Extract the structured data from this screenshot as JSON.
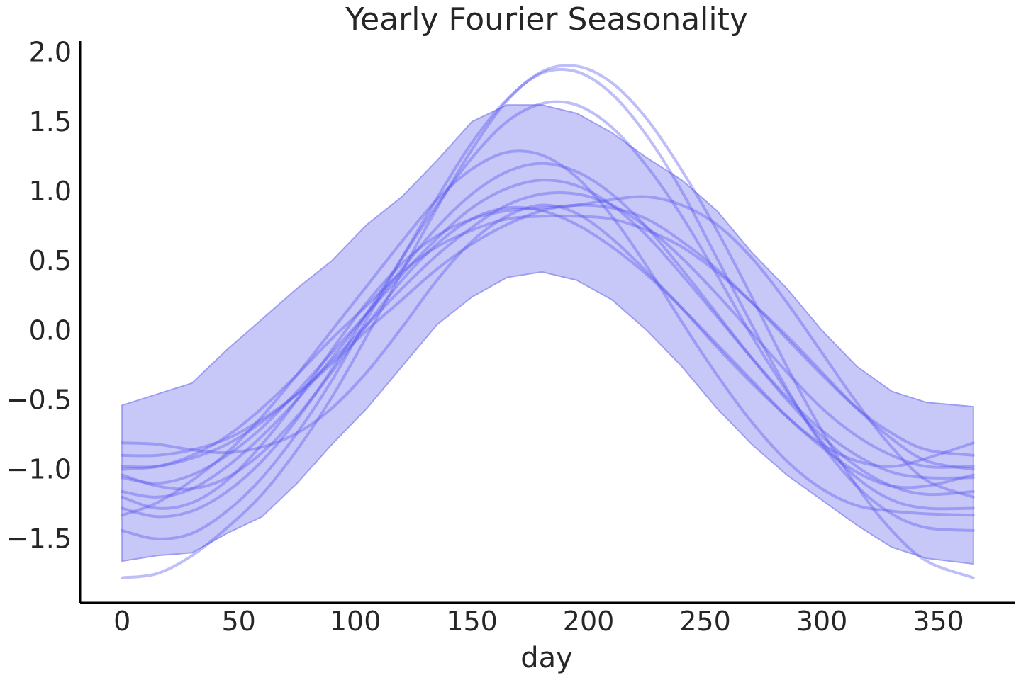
{
  "chart_data": {
    "type": "line",
    "title": "Yearly Fourier Seasonality",
    "xlabel": "day",
    "ylabel": "",
    "xlim": [
      -18,
      383
    ],
    "ylim": [
      -1.96,
      2.08
    ],
    "xticks": [
      0,
      50,
      100,
      150,
      200,
      250,
      300,
      350
    ],
    "xtick_labels": [
      "0",
      "50",
      "100",
      "150",
      "200",
      "250",
      "300",
      "350"
    ],
    "yticks": [
      -1.5,
      -1.0,
      -0.5,
      0.0,
      0.5,
      1.0,
      1.5,
      2.0
    ],
    "ytick_labels": [
      "−1.5",
      "−1.0",
      "−0.5",
      "0.0",
      "0.5",
      "1.0",
      "1.5",
      "2.0"
    ],
    "grid": false,
    "legend": "none",
    "colors": {
      "band": "#c8c8f8",
      "band_edge": "#9d9df2",
      "lines": "#5555ee",
      "axes": "#000000",
      "text": "#262626"
    },
    "band": {
      "name": "",
      "x": [
        0,
        15,
        30,
        45,
        60,
        75,
        90,
        105,
        120,
        135,
        150,
        165,
        180,
        195,
        210,
        225,
        240,
        255,
        270,
        285,
        300,
        315,
        330,
        345,
        365
      ],
      "upper": [
        -0.54,
        -0.46,
        -0.38,
        -0.14,
        0.08,
        0.3,
        0.5,
        0.76,
        0.96,
        1.22,
        1.5,
        1.62,
        1.62,
        1.56,
        1.42,
        1.24,
        1.08,
        0.86,
        0.56,
        0.3,
        0.0,
        -0.26,
        -0.44,
        -0.52,
        -0.55
      ],
      "lower": [
        -1.66,
        -1.62,
        -1.6,
        -1.46,
        -1.34,
        -1.1,
        -0.82,
        -0.56,
        -0.26,
        0.04,
        0.24,
        0.38,
        0.42,
        0.36,
        0.22,
        0.0,
        -0.26,
        -0.56,
        -0.82,
        -1.04,
        -1.22,
        -1.4,
        -1.56,
        -1.64,
        -1.68
      ]
    },
    "series": [
      {
        "values": [
          -1.78,
          -1.75,
          -1.62,
          -1.42,
          -1.18,
          -0.86,
          -0.48,
          -0.04,
          0.42,
          0.88,
          1.3,
          1.65,
          1.86,
          1.9,
          1.78,
          1.52,
          1.15,
          0.72,
          0.24,
          -0.26,
          -0.72,
          -1.12,
          -1.44,
          -1.66,
          -1.78
        ]
      },
      {
        "values": [
          -1.44,
          -1.5,
          -1.46,
          -1.3,
          -1.06,
          -0.74,
          -0.36,
          0.08,
          0.52,
          0.95,
          1.35,
          1.66,
          1.85,
          1.86,
          1.7,
          1.4,
          1.0,
          0.52,
          0.04,
          -0.42,
          -0.82,
          -1.12,
          -1.32,
          -1.42,
          -1.44
        ]
      },
      {
        "values": [
          -1.28,
          -1.34,
          -1.3,
          -1.16,
          -0.94,
          -0.64,
          -0.28,
          0.12,
          0.52,
          0.9,
          1.24,
          1.5,
          1.63,
          1.62,
          1.46,
          1.18,
          0.82,
          0.4,
          -0.04,
          -0.44,
          -0.8,
          -1.06,
          -1.22,
          -1.28,
          -1.28
        ]
      },
      {
        "values": [
          -1.33,
          -1.24,
          -1.08,
          -0.88,
          -0.62,
          -0.32,
          0.0,
          0.32,
          0.64,
          0.94,
          1.16,
          1.28,
          1.26,
          1.1,
          0.82,
          0.46,
          0.06,
          -0.32,
          -0.66,
          -0.94,
          -1.14,
          -1.26,
          -1.3,
          -1.32,
          -1.33
        ]
      },
      {
        "values": [
          -1.16,
          -1.2,
          -1.14,
          -0.98,
          -0.76,
          -0.5,
          -0.2,
          0.12,
          0.44,
          0.74,
          0.98,
          1.14,
          1.2,
          1.14,
          0.98,
          0.74,
          0.44,
          0.12,
          -0.2,
          -0.5,
          -0.76,
          -0.98,
          -1.12,
          -1.18,
          -1.16
        ]
      },
      {
        "values": [
          -1.06,
          -1.1,
          -1.04,
          -0.9,
          -0.7,
          -0.44,
          -0.16,
          0.12,
          0.4,
          0.66,
          0.88,
          1.02,
          1.08,
          1.04,
          0.9,
          0.68,
          0.4,
          0.1,
          -0.2,
          -0.48,
          -0.72,
          -0.9,
          -1.02,
          -1.06,
          -1.06
        ]
      },
      {
        "values": [
          -0.98,
          -0.98,
          -0.92,
          -0.82,
          -0.66,
          -0.46,
          -0.22,
          0.04,
          0.3,
          0.54,
          0.74,
          0.9,
          0.98,
          0.98,
          0.9,
          0.74,
          0.52,
          0.26,
          -0.02,
          -0.3,
          -0.56,
          -0.76,
          -0.9,
          -0.98,
          -0.98
        ]
      },
      {
        "values": [
          -0.9,
          -0.9,
          -0.86,
          -0.78,
          -0.64,
          -0.46,
          -0.24,
          0.0,
          0.22,
          0.44,
          0.62,
          0.76,
          0.86,
          0.9,
          0.88,
          0.8,
          0.64,
          0.44,
          0.2,
          -0.06,
          -0.32,
          -0.56,
          -0.74,
          -0.86,
          -0.9
        ]
      },
      {
        "values": [
          -0.81,
          -0.82,
          -0.86,
          -0.88,
          -0.84,
          -0.74,
          -0.56,
          -0.3,
          0.02,
          0.36,
          0.64,
          0.82,
          0.9,
          0.84,
          0.66,
          0.42,
          0.16,
          -0.12,
          -0.38,
          -0.62,
          -0.82,
          -0.94,
          -0.98,
          -0.92,
          -0.81
        ]
      },
      {
        "values": [
          -1.0,
          -0.98,
          -0.9,
          -0.76,
          -0.56,
          -0.32,
          -0.06,
          0.18,
          0.42,
          0.6,
          0.72,
          0.8,
          0.82,
          0.82,
          0.8,
          0.72,
          0.6,
          0.42,
          0.2,
          -0.04,
          -0.3,
          -0.56,
          -0.78,
          -0.94,
          -1.0
        ]
      },
      {
        "values": [
          -1.2,
          -1.28,
          -1.24,
          -1.08,
          -0.82,
          -0.5,
          -0.14,
          0.2,
          0.48,
          0.68,
          0.8,
          0.86,
          0.88,
          0.9,
          0.94,
          0.96,
          0.9,
          0.76,
          0.52,
          0.2,
          -0.16,
          -0.52,
          -0.84,
          -1.08,
          -1.2
        ]
      },
      {
        "values": [
          -1.04,
          -1.12,
          -1.14,
          -1.06,
          -0.88,
          -0.62,
          -0.3,
          0.04,
          0.36,
          0.62,
          0.8,
          0.88,
          0.86,
          0.76,
          0.6,
          0.4,
          0.16,
          -0.1,
          -0.36,
          -0.62,
          -0.84,
          -1.02,
          -1.12,
          -1.12,
          -1.04
        ]
      }
    ]
  }
}
